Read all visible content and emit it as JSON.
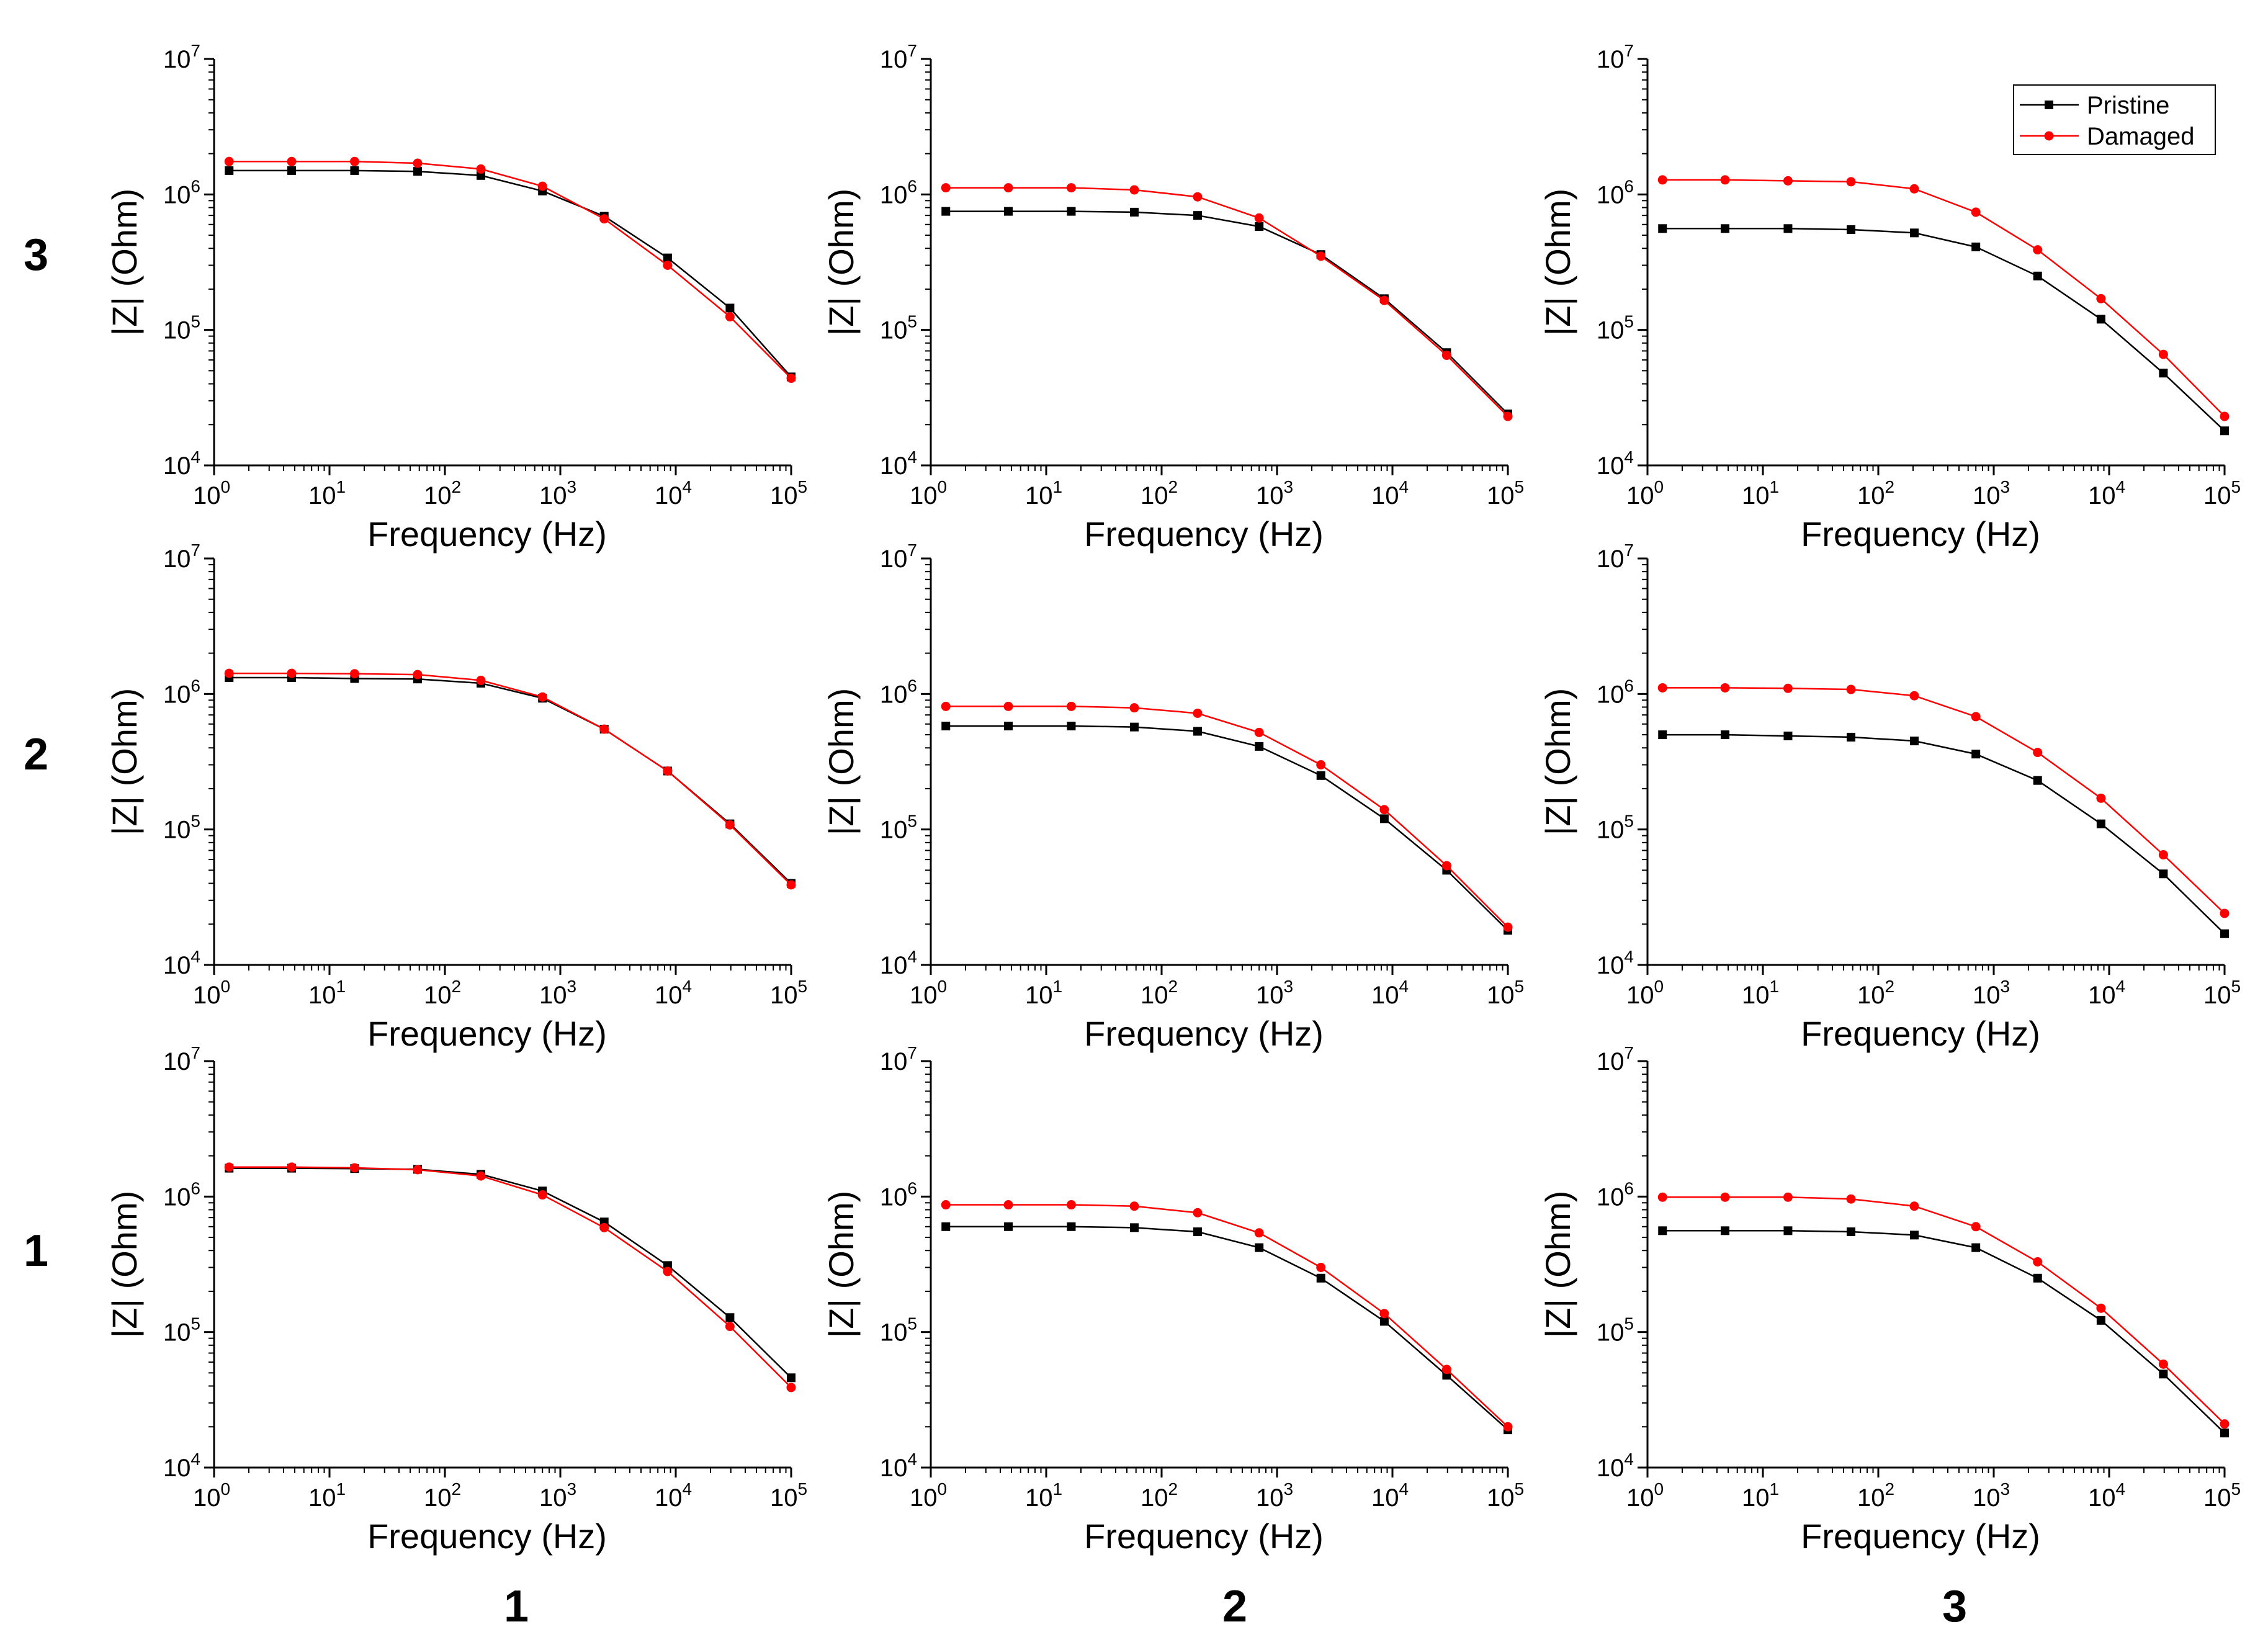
{
  "row_labels": [
    "3",
    "2",
    "1"
  ],
  "column_labels": [
    "1",
    "2",
    "3"
  ],
  "legend": {
    "pristine": "Pristine",
    "damaged": "Damaged",
    "placement": "top-right of top-right panel"
  },
  "colors": {
    "pristine": "#000000",
    "damaged": "#ff0000"
  },
  "chart_data": [
    {
      "id": "r3c1",
      "type": "line",
      "row": "3",
      "column": "1",
      "xlabel": "Frequency (Hz)",
      "ylabel": "|Z| (Ohm)",
      "x_scale": "log",
      "y_scale": "log",
      "xlim": [
        1,
        100000
      ],
      "ylim": [
        10000,
        10000000
      ],
      "x_ticks": [
        1,
        10,
        100,
        1000,
        10000,
        100000
      ],
      "y_ticks": [
        10000,
        100000,
        1000000,
        10000000
      ],
      "x": [
        1.35,
        4.7,
        16.5,
        58,
        205,
        700,
        2400,
        8500,
        29500,
        100000
      ],
      "series": [
        {
          "name": "Pristine",
          "values": [
            1500000,
            1500000,
            1500000,
            1480000,
            1380000,
            1060000,
            690000,
            340000,
            145000,
            45000
          ]
        },
        {
          "name": "Damaged",
          "values": [
            1750000,
            1750000,
            1750000,
            1700000,
            1540000,
            1150000,
            660000,
            300000,
            125000,
            44000
          ]
        }
      ]
    },
    {
      "id": "r3c2",
      "type": "line",
      "row": "3",
      "column": "2",
      "xlabel": "Frequency (Hz)",
      "ylabel": "|Z| (Ohm)",
      "x_scale": "log",
      "y_scale": "log",
      "xlim": [
        1,
        100000
      ],
      "ylim": [
        10000,
        10000000
      ],
      "x_ticks": [
        1,
        10,
        100,
        1000,
        10000,
        100000
      ],
      "y_ticks": [
        10000,
        100000,
        1000000,
        10000000
      ],
      "x": [
        1.35,
        4.7,
        16.5,
        58,
        205,
        700,
        2400,
        8500,
        29500,
        100000
      ],
      "series": [
        {
          "name": "Pristine",
          "values": [
            750000,
            750000,
            750000,
            740000,
            700000,
            580000,
            360000,
            170000,
            68000,
            24000
          ]
        },
        {
          "name": "Damaged",
          "values": [
            1120000,
            1120000,
            1120000,
            1080000,
            960000,
            670000,
            350000,
            165000,
            65000,
            23000
          ]
        }
      ]
    },
    {
      "id": "r3c3",
      "type": "line",
      "row": "3",
      "column": "3",
      "xlabel": "Frequency (Hz)",
      "ylabel": "|Z| (Ohm)",
      "x_scale": "log",
      "y_scale": "log",
      "xlim": [
        1,
        100000
      ],
      "ylim": [
        10000,
        10000000
      ],
      "x_ticks": [
        1,
        10,
        100,
        1000,
        10000,
        100000
      ],
      "y_ticks": [
        10000,
        100000,
        1000000,
        10000000
      ],
      "x": [
        1.35,
        4.7,
        16.5,
        58,
        205,
        700,
        2400,
        8500,
        29500,
        100000
      ],
      "series": [
        {
          "name": "Pristine",
          "values": [
            560000,
            560000,
            560000,
            550000,
            520000,
            410000,
            250000,
            120000,
            48000,
            18000
          ]
        },
        {
          "name": "Damaged",
          "values": [
            1280000,
            1280000,
            1260000,
            1240000,
            1100000,
            740000,
            390000,
            170000,
            66000,
            23000
          ]
        }
      ],
      "show_legend": true
    },
    {
      "id": "r2c1",
      "type": "line",
      "row": "2",
      "column": "1",
      "xlabel": "Frequency (Hz)",
      "ylabel": "|Z| (Ohm)",
      "x_scale": "log",
      "y_scale": "log",
      "xlim": [
        1,
        100000
      ],
      "ylim": [
        10000,
        10000000
      ],
      "x_ticks": [
        1,
        10,
        100,
        1000,
        10000,
        100000
      ],
      "y_ticks": [
        10000,
        100000,
        1000000,
        10000000
      ],
      "x": [
        1.35,
        4.7,
        16.5,
        58,
        205,
        700,
        2400,
        8500,
        29500,
        100000
      ],
      "series": [
        {
          "name": "Pristine",
          "values": [
            1320000,
            1320000,
            1300000,
            1290000,
            1200000,
            930000,
            550000,
            270000,
            110000,
            40000
          ]
        },
        {
          "name": "Damaged",
          "values": [
            1420000,
            1420000,
            1410000,
            1390000,
            1260000,
            950000,
            550000,
            270000,
            108000,
            39000
          ]
        }
      ]
    },
    {
      "id": "r2c2",
      "type": "line",
      "row": "2",
      "column": "2",
      "xlabel": "Frequency (Hz)",
      "ylabel": "|Z| (Ohm)",
      "x_scale": "log",
      "y_scale": "log",
      "xlim": [
        1,
        100000
      ],
      "ylim": [
        10000,
        10000000
      ],
      "x_ticks": [
        1,
        10,
        100,
        1000,
        10000,
        100000
      ],
      "y_ticks": [
        10000,
        100000,
        1000000,
        10000000
      ],
      "x": [
        1.35,
        4.7,
        16.5,
        58,
        205,
        700,
        2400,
        8500,
        29500,
        100000
      ],
      "series": [
        {
          "name": "Pristine",
          "values": [
            580000,
            580000,
            580000,
            570000,
            530000,
            410000,
            250000,
            120000,
            50000,
            18000
          ]
        },
        {
          "name": "Damaged",
          "values": [
            810000,
            810000,
            810000,
            790000,
            720000,
            520000,
            300000,
            140000,
            54000,
            19000
          ]
        }
      ]
    },
    {
      "id": "r2c3",
      "type": "line",
      "row": "2",
      "column": "3",
      "xlabel": "Frequency (Hz)",
      "ylabel": "|Z| (Ohm)",
      "x_scale": "log",
      "y_scale": "log",
      "xlim": [
        1,
        100000
      ],
      "ylim": [
        10000,
        10000000
      ],
      "x_ticks": [
        1,
        10,
        100,
        1000,
        10000,
        100000
      ],
      "y_ticks": [
        10000,
        100000,
        1000000,
        10000000
      ],
      "x": [
        1.35,
        4.7,
        16.5,
        58,
        205,
        700,
        2400,
        8500,
        29500,
        100000
      ],
      "series": [
        {
          "name": "Pristine",
          "values": [
            500000,
            500000,
            490000,
            480000,
            450000,
            360000,
            230000,
            110000,
            47000,
            17000
          ]
        },
        {
          "name": "Damaged",
          "values": [
            1110000,
            1110000,
            1100000,
            1080000,
            970000,
            680000,
            370000,
            170000,
            65000,
            24000
          ]
        }
      ]
    },
    {
      "id": "r1c1",
      "type": "line",
      "row": "1",
      "column": "1",
      "xlabel": "Frequency (Hz)",
      "ylabel": "|Z| (Ohm)",
      "x_scale": "log",
      "y_scale": "log",
      "xlim": [
        1,
        100000
      ],
      "ylim": [
        10000,
        10000000
      ],
      "x_ticks": [
        1,
        10,
        100,
        1000,
        10000,
        100000
      ],
      "y_ticks": [
        10000,
        100000,
        1000000,
        10000000
      ],
      "x": [
        1.35,
        4.7,
        16.5,
        58,
        205,
        700,
        2400,
        8500,
        29500,
        100000
      ],
      "series": [
        {
          "name": "Pristine",
          "values": [
            1620000,
            1620000,
            1610000,
            1590000,
            1460000,
            1100000,
            650000,
            310000,
            128000,
            46000
          ]
        },
        {
          "name": "Damaged",
          "values": [
            1650000,
            1650000,
            1630000,
            1580000,
            1420000,
            1030000,
            590000,
            280000,
            110000,
            39000
          ]
        }
      ]
    },
    {
      "id": "r1c2",
      "type": "line",
      "row": "1",
      "column": "2",
      "xlabel": "Frequency (Hz)",
      "ylabel": "|Z| (Ohm)",
      "x_scale": "log",
      "y_scale": "log",
      "xlim": [
        1,
        100000
      ],
      "ylim": [
        10000,
        10000000
      ],
      "x_ticks": [
        1,
        10,
        100,
        1000,
        10000,
        100000
      ],
      "y_ticks": [
        10000,
        100000,
        1000000,
        10000000
      ],
      "x": [
        1.35,
        4.7,
        16.5,
        58,
        205,
        700,
        2400,
        8500,
        29500,
        100000
      ],
      "series": [
        {
          "name": "Pristine",
          "values": [
            600000,
            600000,
            600000,
            590000,
            550000,
            420000,
            250000,
            120000,
            48000,
            19000
          ]
        },
        {
          "name": "Damaged",
          "values": [
            870000,
            870000,
            870000,
            850000,
            760000,
            540000,
            300000,
            137000,
            53000,
            20000
          ]
        }
      ]
    },
    {
      "id": "r1c3",
      "type": "line",
      "row": "1",
      "column": "3",
      "xlabel": "Frequency (Hz)",
      "ylabel": "|Z| (Ohm)",
      "x_scale": "log",
      "y_scale": "log",
      "xlim": [
        1,
        100000
      ],
      "ylim": [
        10000,
        10000000
      ],
      "x_ticks": [
        1,
        10,
        100,
        1000,
        10000,
        100000
      ],
      "y_ticks": [
        10000,
        100000,
        1000000,
        10000000
      ],
      "x": [
        1.35,
        4.7,
        16.5,
        58,
        205,
        700,
        2400,
        8500,
        29500,
        100000
      ],
      "series": [
        {
          "name": "Pristine",
          "values": [
            560000,
            560000,
            560000,
            550000,
            520000,
            420000,
            250000,
            122000,
            49000,
            18000
          ]
        },
        {
          "name": "Damaged",
          "values": [
            990000,
            990000,
            990000,
            960000,
            850000,
            600000,
            330000,
            150000,
            58000,
            21000
          ]
        }
      ]
    }
  ]
}
